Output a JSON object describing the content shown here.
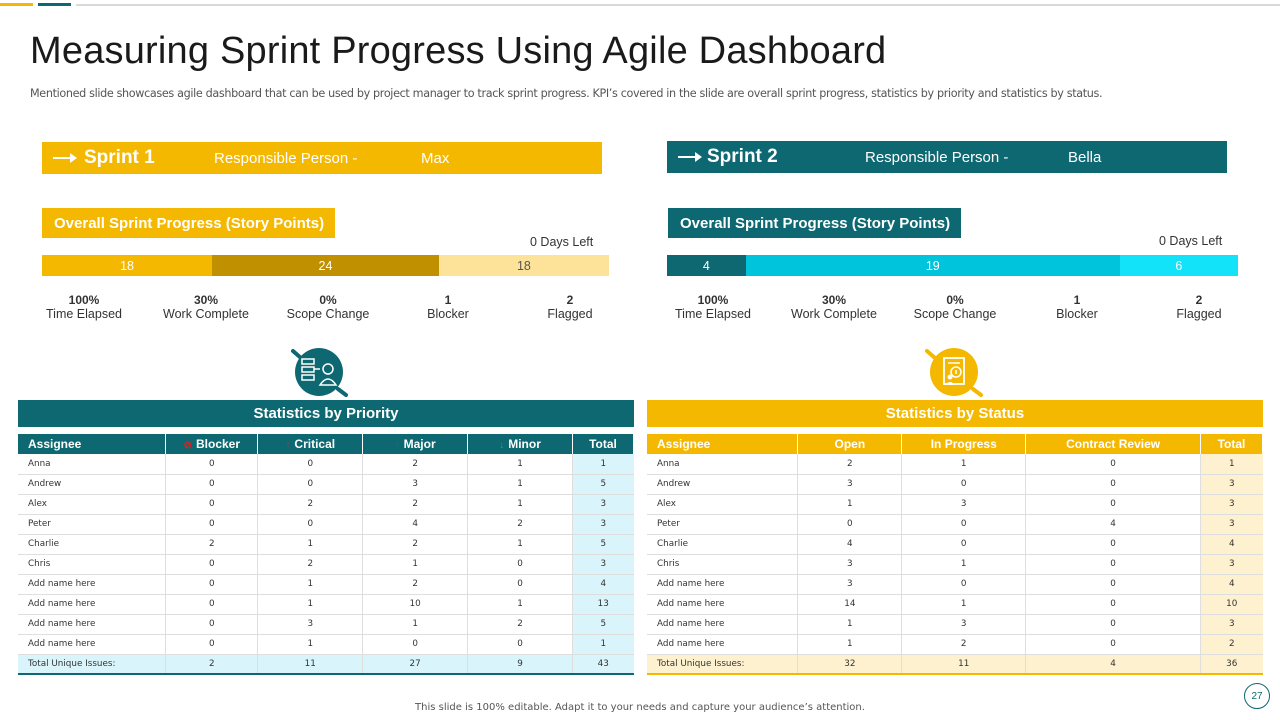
{
  "title": "Measuring Sprint Progress Using Agile Dashboard",
  "subtitle": "Mentioned slide showcases agile dashboard that can be used by project manager to track sprint progress. KPI’s covered in the slide are overall sprint progress, statistics by priority and statistics by status.",
  "colors": {
    "yellow": "#f5b800",
    "teal": "#0d6872",
    "dark_gold": "#c09000",
    "light_yellow": "#fde39a",
    "cyan": "#00c4dc",
    "bright_cyan": "#12e3f8"
  },
  "sprints": [
    {
      "name": "Sprint 1",
      "responsible_label": "Responsible Person -",
      "responsible_name": "Max",
      "progress_title": "Overall Sprint Progress (Story Points)",
      "days_left": "0 Days Left",
      "segments": [
        {
          "value": "18",
          "share": 0.3,
          "color": "#f5b800"
        },
        {
          "value": "24",
          "share": 0.4,
          "color": "#c09000"
        },
        {
          "value": "18",
          "share": 0.3,
          "color": "#fde39a",
          "text_color": "#555555"
        }
      ],
      "kpis": [
        {
          "value": "100%",
          "label": "Time Elapsed"
        },
        {
          "value": "30%",
          "label": "Work Complete"
        },
        {
          "value": "0%",
          "label": "Scope Change"
        },
        {
          "value": "1",
          "label": "Blocker"
        },
        {
          "value": "2",
          "label": "Flagged"
        }
      ]
    },
    {
      "name": "Sprint 2",
      "responsible_label": "Responsible Person -",
      "responsible_name": "Bella",
      "progress_title": "Overall Sprint Progress (Story Points)",
      "days_left": "0 Days Left",
      "segments": [
        {
          "value": "4",
          "share": 0.1379,
          "color": "#0d6872"
        },
        {
          "value": "19",
          "share": 0.6552,
          "color": "#00c4dc"
        },
        {
          "value": "6",
          "share": 0.2069,
          "color": "#12e3f8"
        }
      ],
      "kpis": [
        {
          "value": "100%",
          "label": "Time Elapsed"
        },
        {
          "value": "30%",
          "label": "Work Complete"
        },
        {
          "value": "0%",
          "label": "Scope Change"
        },
        {
          "value": "1",
          "label": "Blocker"
        },
        {
          "value": "2",
          "label": "Flagged"
        }
      ]
    }
  ],
  "priority": {
    "title": "Statistics  by Priority",
    "icon": "team-chart-icon",
    "headers": [
      {
        "label": "Assignee",
        "icon": ""
      },
      {
        "label": "Blocker",
        "icon": "⊘",
        "icon_color": "#e02020"
      },
      {
        "label": "Critical",
        "icon": "↑",
        "icon_color": "#e02020"
      },
      {
        "label": "Major",
        "icon": "↑",
        "icon_color": "#e02020"
      },
      {
        "label": "Minor",
        "icon": "↓",
        "icon_color": "#21b24b"
      },
      {
        "label": "Total",
        "icon": ""
      }
    ],
    "rows": [
      [
        "Anna",
        "0",
        "0",
        "2",
        "1",
        "1"
      ],
      [
        "Andrew",
        "0",
        "0",
        "3",
        "1",
        "5"
      ],
      [
        "Alex",
        "0",
        "2",
        "2",
        "1",
        "3"
      ],
      [
        "Peter",
        "0",
        "0",
        "4",
        "2",
        "3"
      ],
      [
        "Charlie",
        "2",
        "1",
        "2",
        "1",
        "5"
      ],
      [
        "Chris",
        "0",
        "2",
        "1",
        "0",
        "3"
      ],
      [
        "Add name here",
        "0",
        "1",
        "2",
        "0",
        "4"
      ],
      [
        "Add name here",
        "0",
        "1",
        "10",
        "1",
        "13"
      ],
      [
        "Add name here",
        "0",
        "3",
        "1",
        "2",
        "5"
      ],
      [
        "Add name here",
        "0",
        "1",
        "0",
        "0",
        "1"
      ]
    ],
    "total": [
      "Total Unique Issues:",
      "2",
      "11",
      "27",
      "9",
      "43"
    ]
  },
  "status": {
    "title": "Statistics  by Status",
    "icon": "document-check-icon",
    "headers": [
      {
        "label": "Assignee"
      },
      {
        "label": "Open"
      },
      {
        "label": "In Progress"
      },
      {
        "label": "Contract Review"
      },
      {
        "label": "Total"
      }
    ],
    "rows": [
      [
        "Anna",
        "2",
        "1",
        "0",
        "1"
      ],
      [
        "Andrew",
        "3",
        "0",
        "0",
        "3"
      ],
      [
        "Alex",
        "1",
        "3",
        "0",
        "3"
      ],
      [
        "Peter",
        "0",
        "0",
        "4",
        "3"
      ],
      [
        "Charlie",
        "4",
        "0",
        "0",
        "4"
      ],
      [
        "Chris",
        "3",
        "1",
        "0",
        "3"
      ],
      [
        "Add name here",
        "3",
        "0",
        "0",
        "4"
      ],
      [
        "Add name here",
        "14",
        "1",
        "0",
        "10"
      ],
      [
        "Add name here",
        "1",
        "3",
        "0",
        "3"
      ],
      [
        "Add name here",
        "1",
        "2",
        "0",
        "2"
      ]
    ],
    "total": [
      "Total Unique Issues:",
      "32",
      "11",
      "4",
      "36"
    ]
  },
  "footer": "This slide is 100% editable. Adapt it to your needs and capture your audience’s attention.",
  "page_number": "27"
}
